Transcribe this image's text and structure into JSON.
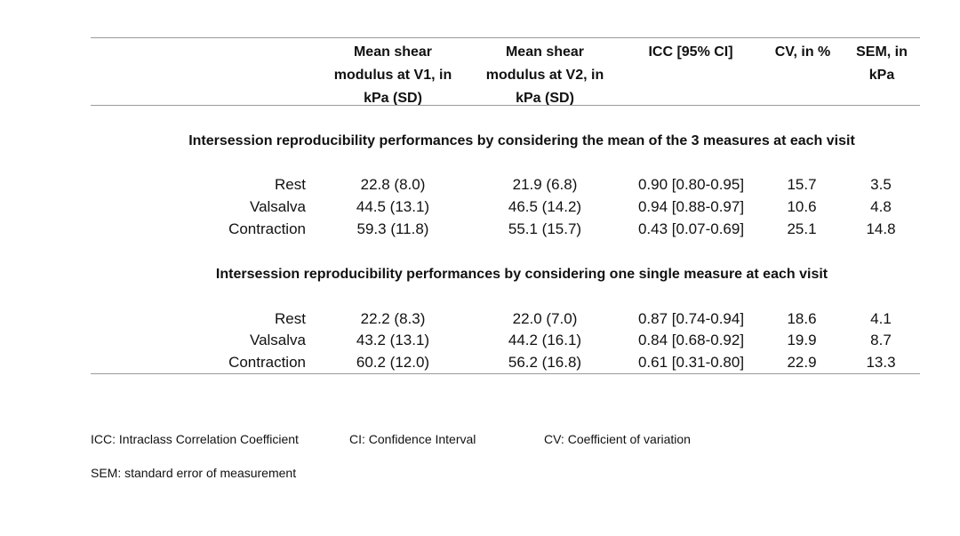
{
  "table": {
    "headers": {
      "v1": [
        "Mean shear",
        "modulus at V1, in",
        "kPa (SD)"
      ],
      "v2": [
        "Mean shear",
        "modulus at V2, in",
        "kPa (SD)"
      ],
      "icc": [
        "ICC [95% CI]"
      ],
      "cv": [
        "CV, in %"
      ],
      "sem": [
        "SEM, in",
        "kPa"
      ]
    },
    "sections": [
      {
        "title": "Intersession reproducibility performances by considering the mean of the 3 measures at each visit",
        "rows": [
          {
            "label": "Rest",
            "v1": "22.8 (8.0)",
            "v2": "21.9 (6.8)",
            "icc": "0.90 [0.80-0.95]",
            "cv": "15.7",
            "sem": "3.5"
          },
          {
            "label": "Valsalva",
            "v1": "44.5 (13.1)",
            "v2": "46.5 (14.2)",
            "icc": "0.94 [0.88-0.97]",
            "cv": "10.6",
            "sem": "4.8"
          },
          {
            "label": "Contraction",
            "v1": "59.3 (11.8)",
            "v2": "55.1 (15.7)",
            "icc": "0.43 [0.07-0.69]",
            "cv": "25.1",
            "sem": "14.8"
          }
        ]
      },
      {
        "title": "Intersession reproducibility performances by considering one single measure at each visit",
        "rows": [
          {
            "label": "Rest",
            "v1": "22.2 (8.3)",
            "v2": "22.0 (7.0)",
            "icc": "0.87 [0.74-0.94]",
            "cv": "18.6",
            "sem": "4.1"
          },
          {
            "label": "Valsalva",
            "v1": "43.2 (13.1)",
            "v2": "44.2 (16.1)",
            "icc": "0.84 [0.68-0.92]",
            "cv": "19.9",
            "sem": "8.7"
          },
          {
            "label": "Contraction",
            "v1": "60.2 (12.0)",
            "v2": "56.2 (16.8)",
            "icc": "0.61 [0.31-0.80]",
            "cv": "22.9",
            "sem": "13.3"
          }
        ]
      }
    ]
  },
  "footnotes": {
    "icc": "ICC: Intraclass Correlation Coefficient",
    "ci": "CI: Confidence Interval",
    "cv": "CV: Coefficient of variation",
    "sem": "SEM: standard error of measurement"
  }
}
